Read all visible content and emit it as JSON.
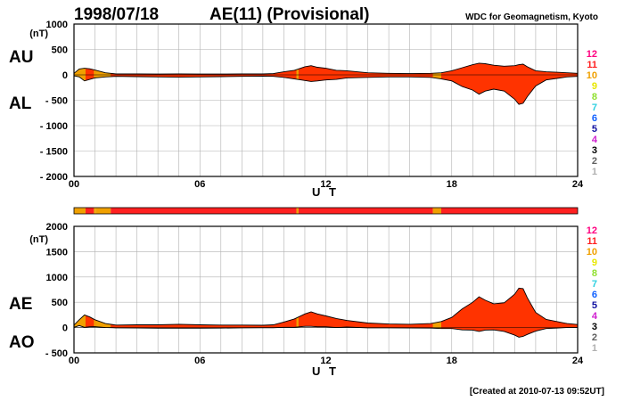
{
  "header": {
    "date": "1998/07/18",
    "title": "AE(11) (Provisional)",
    "org": "WDC for Geomagnetism, Kyoto"
  },
  "footer": "[Created at 2010-07-13 09:52UT]",
  "colors": {
    "fill_main": "#ff3300",
    "fill_early": "#f0a000",
    "band_outline": "#000000",
    "grid": "#b0b0b0"
  },
  "legend": {
    "items": [
      {
        "label": "12",
        "color": "#ff0080"
      },
      {
        "label": "11",
        "color": "#ff2020"
      },
      {
        "label": "10",
        "color": "#f0a000"
      },
      {
        "label": "9",
        "color": "#e8e800"
      },
      {
        "label": "8",
        "color": "#90e030"
      },
      {
        "label": "7",
        "color": "#30d0e0"
      },
      {
        "label": "6",
        "color": "#1060ff"
      },
      {
        "label": "5",
        "color": "#1010a0"
      },
      {
        "label": "4",
        "color": "#d020d0"
      },
      {
        "label": "3",
        "color": "#000000"
      },
      {
        "label": "2",
        "color": "#606060"
      },
      {
        "label": "1",
        "color": "#b0b0b0"
      }
    ]
  },
  "station_band": {
    "segments": [
      {
        "from": 0.0,
        "to": 0.55,
        "stations": 10
      },
      {
        "from": 0.55,
        "to": 0.95,
        "stations": 11
      },
      {
        "from": 0.95,
        "to": 1.05,
        "stations": 10
      },
      {
        "from": 1.05,
        "to": 1.75,
        "stations": 10
      },
      {
        "from": 1.75,
        "to": 10.6,
        "stations": 11
      },
      {
        "from": 10.6,
        "to": 10.7,
        "stations": 10
      },
      {
        "from": 10.7,
        "to": 17.1,
        "stations": 11
      },
      {
        "from": 17.1,
        "to": 17.5,
        "stations": 10
      },
      {
        "from": 17.5,
        "to": 24.0,
        "stations": 11
      }
    ]
  },
  "chart_data": [
    {
      "type": "area",
      "title": "",
      "xlabel": "U T",
      "ylabel": "",
      "unit_label": "(nT)",
      "upper_name": "AU",
      "lower_name": "AL",
      "xlim": [
        0,
        24
      ],
      "ylim": [
        -2000,
        1000
      ],
      "xticks": [
        "00",
        "06",
        "12",
        "18",
        "24"
      ],
      "yticks": [
        "1000",
        "500",
        "0",
        "- 500",
        "- 1000",
        "- 1500",
        "- 2000"
      ],
      "grid": true,
      "x": [
        0,
        0.25,
        0.5,
        0.75,
        1,
        1.5,
        2,
        3,
        4,
        5,
        6,
        7,
        8,
        9,
        9.5,
        10,
        10.5,
        11,
        11.3,
        11.6,
        12,
        12.5,
        13,
        14,
        15,
        16,
        17,
        17.5,
        18,
        18.5,
        19,
        19.3,
        19.6,
        20,
        20.5,
        21,
        21.2,
        21.4,
        21.6,
        22,
        22.5,
        23,
        23.5,
        24
      ],
      "series": [
        {
          "name": "AU",
          "values": [
            30,
            115,
            130,
            120,
            95,
            40,
            20,
            20,
            15,
            20,
            15,
            15,
            20,
            20,
            25,
            60,
            90,
            160,
            180,
            150,
            130,
            90,
            80,
            40,
            30,
            25,
            30,
            40,
            80,
            140,
            200,
            230,
            220,
            190,
            170,
            180,
            200,
            210,
            160,
            80,
            60,
            50,
            40,
            30
          ]
        },
        {
          "name": "AL",
          "values": [
            -20,
            -40,
            -120,
            -90,
            -60,
            -40,
            -30,
            -35,
            -40,
            -45,
            -40,
            -35,
            -30,
            -25,
            -30,
            -50,
            -80,
            -110,
            -130,
            -120,
            -100,
            -90,
            -60,
            -50,
            -40,
            -40,
            -50,
            -80,
            -120,
            -230,
            -300,
            -380,
            -320,
            -280,
            -320,
            -480,
            -580,
            -560,
            -430,
            -220,
            -100,
            -70,
            -40,
            -30
          ]
        }
      ]
    },
    {
      "type": "area",
      "title": "",
      "xlabel": "U T",
      "ylabel": "",
      "unit_label": "(nT)",
      "upper_name": "AE",
      "lower_name": "AO",
      "xlim": [
        0,
        24
      ],
      "ylim": [
        -500,
        2000
      ],
      "xticks": [
        "00",
        "06",
        "12",
        "18",
        "24"
      ],
      "yticks": [
        "2000",
        "1500",
        "1000",
        "500",
        "0",
        "- 500"
      ],
      "grid": true,
      "x": [
        0,
        0.25,
        0.5,
        0.75,
        1,
        1.5,
        2,
        3,
        4,
        5,
        6,
        7,
        8,
        9,
        9.5,
        10,
        10.5,
        11,
        11.3,
        11.6,
        12,
        12.5,
        13,
        14,
        15,
        16,
        17,
        17.5,
        18,
        18.5,
        19,
        19.3,
        19.6,
        20,
        20.5,
        21,
        21.2,
        21.4,
        21.6,
        22,
        22.5,
        23,
        23.5,
        24
      ],
      "series": [
        {
          "name": "AE",
          "values": [
            50,
            155,
            250,
            210,
            155,
            80,
            50,
            55,
            55,
            65,
            55,
            50,
            50,
            45,
            55,
            110,
            170,
            270,
            310,
            270,
            230,
            180,
            140,
            90,
            70,
            65,
            80,
            120,
            200,
            370,
            500,
            610,
            540,
            470,
            490,
            660,
            780,
            770,
            590,
            300,
            160,
            120,
            80,
            60
          ]
        },
        {
          "name": "AO",
          "values": [
            5,
            38,
            5,
            15,
            18,
            0,
            -5,
            -8,
            -13,
            -13,
            -13,
            -10,
            -5,
            -3,
            -3,
            5,
            5,
            25,
            25,
            15,
            15,
            0,
            10,
            -5,
            -5,
            -8,
            -10,
            -20,
            -20,
            -45,
            -50,
            -75,
            -50,
            -45,
            -75,
            -150,
            -190,
            -175,
            -135,
            -70,
            -20,
            -10,
            0,
            0
          ]
        }
      ]
    }
  ]
}
